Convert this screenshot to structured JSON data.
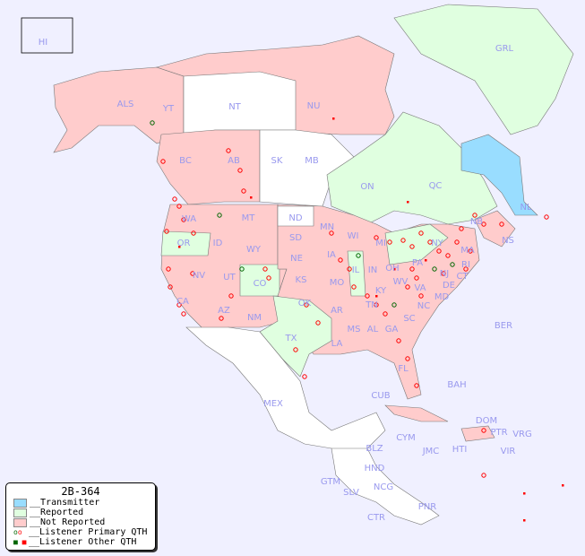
{
  "legend": {
    "title": "2B-364",
    "items": [
      {
        "label": "__Transmitter",
        "color": "#99ddff",
        "kind": "swatch"
      },
      {
        "label": "__Reported",
        "color": "#e0ffe0",
        "kind": "swatch"
      },
      {
        "label": "__Not Reported",
        "color": "#ffcccc",
        "kind": "swatch"
      },
      {
        "label": "__Listener Primary QTH",
        "kind": "circle"
      },
      {
        "label": "__Listener Other QTH",
        "kind": "square"
      }
    ]
  },
  "colors": {
    "transmitter": "#99ddff",
    "reported": "#e0ffe0",
    "not_reported": "#ffcccc",
    "listener": "#ff0000",
    "listener_reported": "#006600",
    "label": "#9999ee"
  },
  "regions": [
    "HI",
    "ALS",
    "YT",
    "NT",
    "NU",
    "GRL",
    "BC",
    "AB",
    "SK",
    "MB",
    "ON",
    "QC",
    "NL",
    "NB",
    "NS",
    "WA",
    "OR",
    "ID",
    "MT",
    "WY",
    "ND",
    "SD",
    "NE",
    "MN",
    "WI",
    "IA",
    "IL",
    "MI",
    "IN",
    "OH",
    "PA",
    "NY",
    "MA",
    "CT",
    "RI",
    "NJ",
    "DE",
    "MD",
    "VA",
    "WV",
    "KY",
    "TN",
    "NC",
    "SC",
    "GA",
    "AL",
    "MS",
    "FL",
    "LA",
    "AR",
    "MO",
    "KS",
    "OK",
    "TX",
    "NM",
    "AZ",
    "UT",
    "CO",
    "NV",
    "CA",
    "MEX",
    "CUB",
    "BAH",
    "BER",
    "DOM",
    "PTR",
    "VRG",
    "HTI",
    "JMC",
    "CYM",
    "BLZ",
    "GTM",
    "HND",
    "SLV",
    "NCG",
    "CTR",
    "PNR",
    "VIR"
  ]
}
